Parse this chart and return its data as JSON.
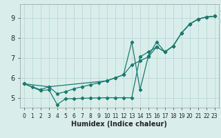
{
  "title": "",
  "xlabel": "Humidex (Indice chaleur)",
  "ylabel": "",
  "xlim": [
    -0.5,
    23.5
  ],
  "ylim": [
    4.5,
    9.7
  ],
  "yticks": [
    5,
    6,
    7,
    8,
    9
  ],
  "xticks": [
    0,
    1,
    2,
    3,
    4,
    5,
    6,
    7,
    8,
    9,
    10,
    11,
    12,
    13,
    14,
    15,
    16,
    17,
    18,
    19,
    20,
    21,
    22,
    23
  ],
  "bg_color": "#d9eeeb",
  "grid_color": "#b8d8d4",
  "line_color": "#1a7a6e",
  "series": [
    {
      "x": [
        0,
        1,
        2,
        3,
        4,
        5,
        6,
        7,
        8,
        9,
        10,
        11,
        12,
        13,
        14,
        15,
        16,
        17,
        18,
        19,
        20,
        21,
        22,
        23
      ],
      "y": [
        5.7,
        5.55,
        5.4,
        5.55,
        5.2,
        5.3,
        5.45,
        5.55,
        5.65,
        5.75,
        5.85,
        6.0,
        6.15,
        6.65,
        6.85,
        7.05,
        7.55,
        7.3,
        7.6,
        8.25,
        8.7,
        8.95,
        9.05,
        9.1
      ]
    },
    {
      "x": [
        0,
        3,
        10,
        11,
        12,
        13,
        14,
        15,
        16,
        17,
        18,
        19,
        20,
        21,
        22,
        23
      ],
      "y": [
        5.7,
        5.55,
        5.85,
        6.0,
        6.15,
        7.8,
        5.4,
        7.1,
        7.8,
        7.3,
        7.6,
        8.25,
        8.7,
        8.95,
        9.05,
        9.1
      ]
    },
    {
      "x": [
        0,
        2,
        3,
        4,
        5,
        6,
        7,
        8,
        9,
        10,
        11,
        12,
        13,
        14,
        15,
        16,
        17,
        18,
        19,
        20,
        21,
        22,
        23
      ],
      "y": [
        5.7,
        5.35,
        5.4,
        4.65,
        4.95,
        4.95,
        4.97,
        4.98,
        4.99,
        5.0,
        5.0,
        5.0,
        5.0,
        7.05,
        7.3,
        7.55,
        7.3,
        7.6,
        8.25,
        8.7,
        8.95,
        9.05,
        9.1
      ]
    }
  ]
}
